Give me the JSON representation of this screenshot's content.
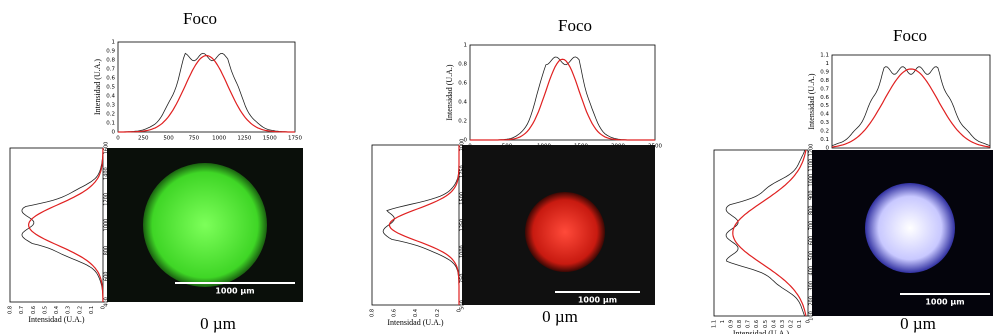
{
  "panels": [
    {
      "title": "Foco",
      "caption": "0 µm",
      "scale_label": "1000 µm",
      "top": {
        "ylabel": "Intensidad (U.A.)",
        "xticks": [
          0,
          250,
          500,
          750,
          1000,
          1250,
          1500,
          1750
        ],
        "yticks": [
          0.0,
          0.1,
          0.2,
          0.3,
          0.4,
          0.5,
          0.6,
          0.7,
          0.8,
          0.9,
          1.0
        ]
      },
      "side": {
        "xlabel": "Intensidad (U.A.)",
        "xticks": [
          0.8,
          0.7,
          0.6,
          0.5,
          0.4,
          0.3,
          0.2,
          0.1,
          0.0
        ],
        "yticks": [
          400,
          600,
          800,
          1000,
          1200,
          1400,
          1600
        ]
      }
    },
    {
      "title": "Foco",
      "caption": "0 µm",
      "scale_label": "1000 µm",
      "top": {
        "ylabel": "Intensidad (U.A.)",
        "xticks": [
          0,
          500,
          1000,
          1500,
          2000,
          2500
        ],
        "yticks": [
          0.0,
          0.2,
          0.4,
          0.6,
          0.8,
          1.0
        ]
      },
      "side": {
        "xlabel": "Intensidad (U.A.)",
        "xticks": [
          0.8,
          0.6,
          0.4,
          0.2,
          0.0
        ],
        "yticks": [
          500,
          750,
          1000,
          1250,
          1500,
          1750,
          2000
        ]
      }
    },
    {
      "title": "Foco",
      "caption": "0 µm",
      "scale_label": "1000 µm",
      "top": {
        "ylabel": "Intensidad (U.A.)",
        "xticks": [
          0,
          200,
          400,
          600,
          800,
          1000,
          1200
        ],
        "yticks": [
          0.0,
          0.1,
          0.2,
          0.3,
          0.4,
          0.5,
          0.6,
          0.7,
          0.8,
          0.9,
          1.0,
          1.1
        ]
      },
      "side": {
        "xlabel": "Intensidad (U.A.)",
        "xticks": [
          1.1,
          1.0,
          0.9,
          0.8,
          0.7,
          0.6,
          0.5,
          0.4,
          0.3,
          0.2,
          0.1,
          0.0
        ],
        "yticks": [
          100,
          200,
          300,
          400,
          500,
          600,
          700,
          800,
          900,
          1000,
          1100,
          1200
        ]
      }
    }
  ]
}
